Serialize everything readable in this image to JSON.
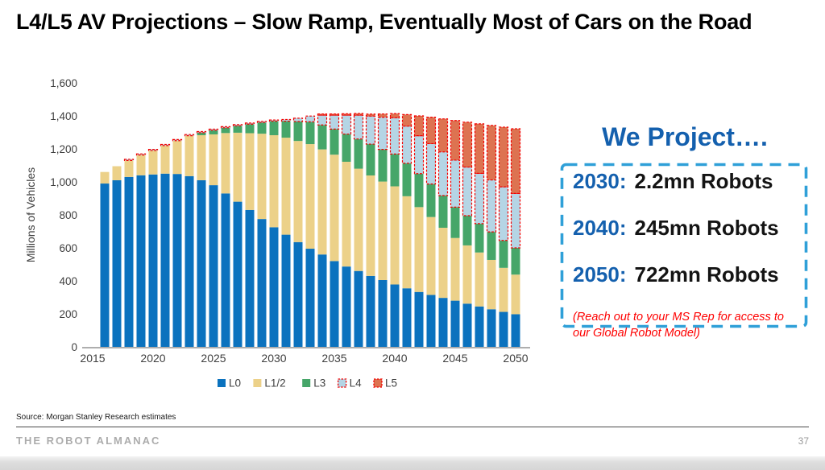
{
  "slide": {
    "title": "L4/L5 AV Projections – Slow Ramp, Eventually Most of Cars on the Road",
    "source_note": "Source: Morgan Stanley Research estimates",
    "footer": {
      "brand": "THE ROBOT ALMANAC",
      "page_number": "37"
    }
  },
  "chart_data": {
    "type": "bar",
    "stacked": true,
    "title": "",
    "xlabel": "",
    "ylabel": "Millions of Vehicles",
    "ylim": [
      0,
      1600
    ],
    "ytick_step": 200,
    "ytick_labels": [
      "0",
      "200",
      "400",
      "600",
      "800",
      "1,000",
      "1,200",
      "1,400",
      "1,600"
    ],
    "xtick_labels": [
      "2015",
      "2020",
      "2025",
      "2030",
      "2035",
      "2040",
      "2045",
      "2050"
    ],
    "grid": false,
    "legend_position": "bottom",
    "x": [
      2016,
      2017,
      2018,
      2019,
      2020,
      2021,
      2022,
      2023,
      2024,
      2025,
      2026,
      2027,
      2028,
      2029,
      2030,
      2031,
      2032,
      2033,
      2034,
      2035,
      2036,
      2037,
      2038,
      2039,
      2040,
      2041,
      2042,
      2043,
      2044,
      2045,
      2046,
      2047,
      2048,
      2049,
      2050
    ],
    "series": [
      {
        "name": "L0",
        "color": "#0B72BE",
        "values": [
          990,
          1010,
          1030,
          1040,
          1045,
          1050,
          1048,
          1035,
          1010,
          980,
          930,
          880,
          830,
          775,
          725,
          680,
          635,
          595,
          560,
          520,
          487,
          460,
          430,
          405,
          378,
          355,
          333,
          315,
          297,
          280,
          262,
          245,
          228,
          212,
          198
        ]
      },
      {
        "name": "L1/2",
        "color": "#ECD189",
        "values": [
          70,
          85,
          100,
          123,
          145,
          170,
          202,
          245,
          273,
          308,
          366,
          418,
          465,
          517,
          558,
          588,
          613,
          634,
          637,
          645,
          635,
          620,
          609,
          597,
          595,
          558,
          514,
          472,
          425,
          380,
          353,
          327,
          299,
          267,
          240
        ]
      },
      {
        "name": "L3",
        "color": "#46A669",
        "values": [
          0,
          0,
          0,
          0,
          0,
          0,
          0,
          0,
          15,
          25,
          32,
          42,
          55,
          68,
          85,
          100,
          118,
          135,
          148,
          155,
          168,
          180,
          190,
          195,
          196,
          200,
          203,
          200,
          195,
          187,
          180,
          175,
          170,
          166,
          162
        ]
      },
      {
        "name": "L4",
        "color": "#B5D5E5",
        "border": "#F40000",
        "values": [
          0,
          0,
          2,
          2,
          2,
          2,
          2,
          2,
          2,
          2,
          2,
          2,
          2,
          2,
          2,
          10,
          20,
          35,
          60,
          85,
          115,
          145,
          170,
          195,
          220,
          225,
          230,
          245,
          265,
          285,
          295,
          305,
          315,
          325,
          330
        ]
      },
      {
        "name": "L5",
        "color": "#DD7351",
        "border": "#F40000",
        "values": [
          0,
          0,
          0,
          0,
          0,
          0,
          0,
          0,
          0,
          0,
          0,
          0,
          0,
          0,
          0,
          0,
          0,
          0,
          2,
          5,
          8,
          10,
          12,
          20,
          25,
          70,
          120,
          160,
          200,
          240,
          272,
          300,
          330,
          362,
          392
        ]
      }
    ],
    "axis_text_color": "#3f3f3f",
    "axis_line_color": "#a3a3a3"
  },
  "projection_panel": {
    "title": "We Project….",
    "items": [
      {
        "year_label": "2030:",
        "value_label": "2.2mn Robots"
      },
      {
        "year_label": "2040:",
        "value_label": "245mn Robots"
      },
      {
        "year_label": "2050:",
        "value_label": "722mn Robots"
      }
    ],
    "note": "(Reach out to your MS Rep for access to our Global Robot Model)",
    "accent_blue": "#1460AE",
    "box_border_blue": "#2FA0D8",
    "note_red": "#FE0000"
  }
}
